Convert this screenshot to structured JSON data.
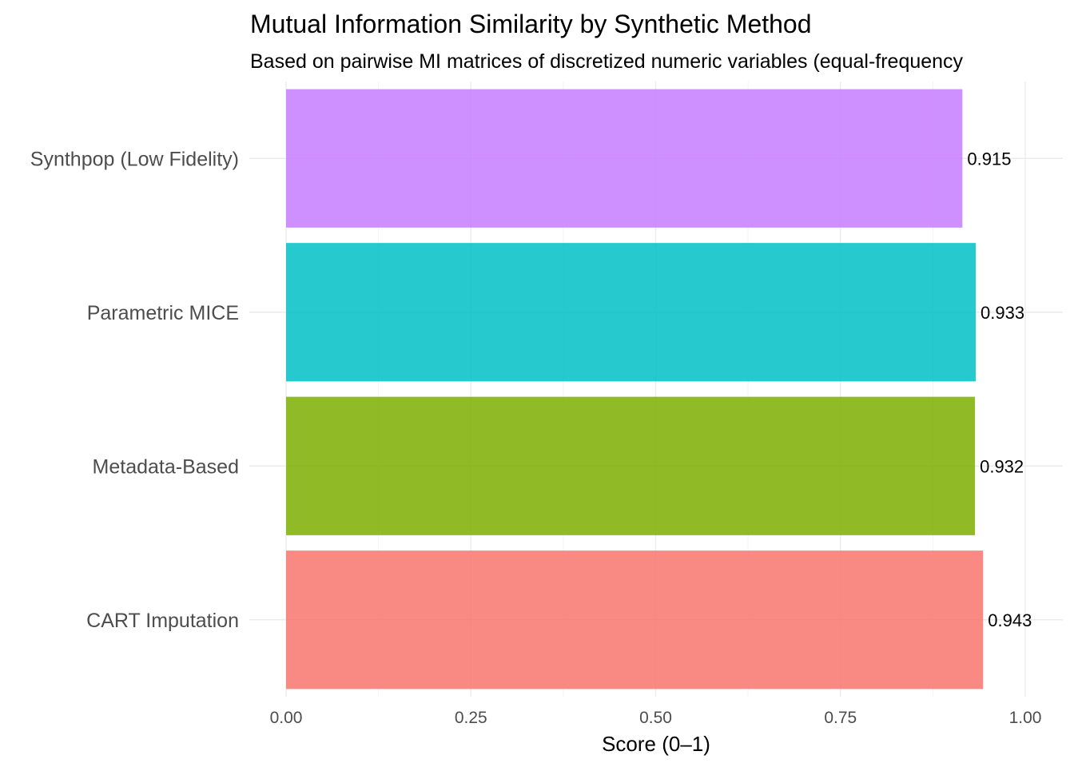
{
  "chart_data": {
    "type": "bar",
    "orientation": "horizontal",
    "title": "Mutual Information Similarity by Synthetic Method",
    "subtitle": "Based on pairwise MI matrices of discretized numeric variables (equal-frequency",
    "xlabel": "Score (0–1)",
    "ylabel": "",
    "xlim": [
      0,
      1
    ],
    "x_ticks": [
      "0.00",
      "0.25",
      "0.50",
      "0.75",
      "1.00"
    ],
    "x_tick_values": [
      0,
      0.25,
      0.5,
      0.75,
      1.0
    ],
    "grid": true,
    "legend": "none",
    "categories": [
      "CART Imputation",
      "Metadata-Based",
      "Parametric MICE",
      "Synthpop (Low Fidelity)"
    ],
    "values": [
      0.943,
      0.932,
      0.933,
      0.915
    ],
    "value_labels": [
      "0.943",
      "0.932",
      "0.933",
      "0.915"
    ],
    "colors": [
      "#F8766D",
      "#7CAE00",
      "#00BFC4",
      "#C77CFF"
    ]
  }
}
